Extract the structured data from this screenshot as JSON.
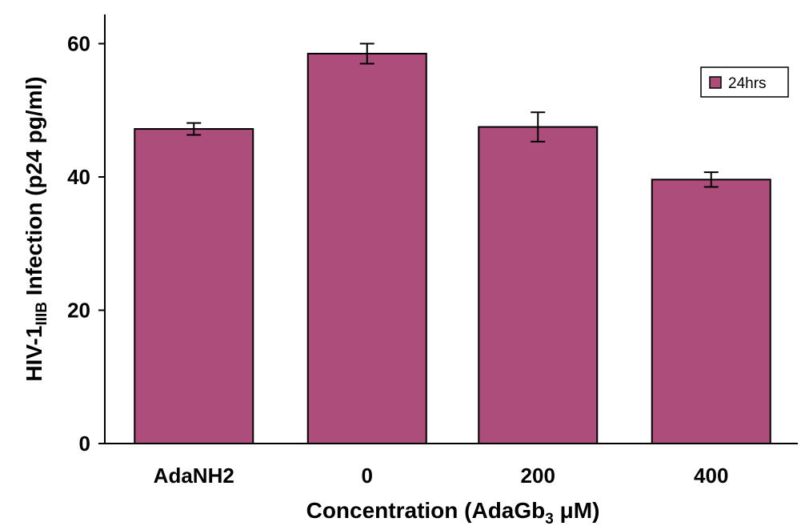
{
  "chart_data": {
    "type": "bar",
    "categories": [
      "AdaNH2",
      "0",
      "200",
      "400"
    ],
    "series": [
      {
        "name": "24hrs",
        "values": [
          47.2,
          58.5,
          47.5,
          39.6
        ],
        "errors": [
          0.9,
          1.5,
          2.2,
          1.1
        ]
      }
    ],
    "ylim": [
      0,
      60
    ],
    "yticks": [
      0,
      20,
      40,
      60
    ],
    "ylabel": {
      "main": "HIV-1",
      "subscript": "IIIB",
      "rest": " Infection (p24 pg/ml)"
    },
    "xlabel": {
      "main": "Concentration (AdaGb",
      "subscript": "3",
      "rest": "  μM)"
    },
    "legend_position": "top-right",
    "grid": false,
    "colors": {
      "bar": "#ad4d7b",
      "axis": "#000000"
    }
  }
}
